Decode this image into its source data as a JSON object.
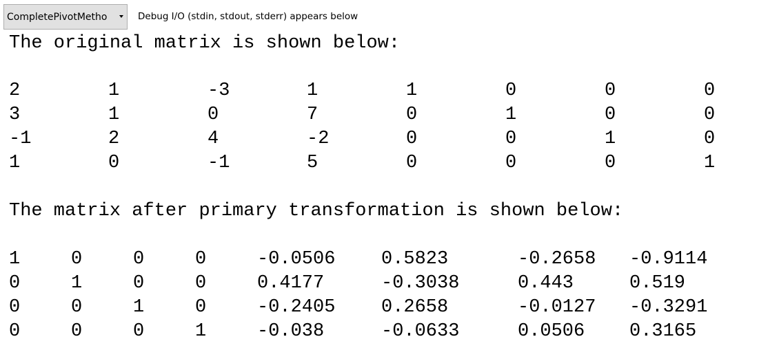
{
  "toolbar": {
    "dropdown_value": "CompletePivotMetho",
    "debug_label": "Debug I/O (stdin, stdout, stderr) appears below"
  },
  "console": {
    "heading1": "The original matrix is shown below:",
    "matrix1": [
      [
        "2",
        "1",
        "-3",
        "1",
        "1",
        "0",
        "0",
        "0"
      ],
      [
        "3",
        "1",
        "0",
        "7",
        "0",
        "1",
        "0",
        "0"
      ],
      [
        "-1",
        "2",
        "4",
        "-2",
        "0",
        "0",
        "1",
        "0"
      ],
      [
        "1",
        "0",
        "-1",
        "5",
        "0",
        "0",
        "0",
        "1"
      ]
    ],
    "heading2": "The matrix after primary transformation is shown below:",
    "matrix2": [
      [
        "1",
        "0",
        "0",
        "0",
        "-0.0506",
        "0.5823",
        "-0.2658",
        "-0.9114"
      ],
      [
        "0",
        "1",
        "0",
        "0",
        "0.4177",
        "-0.3038",
        "0.443",
        "0.519"
      ],
      [
        "0",
        "0",
        "1",
        "0",
        "-0.2405",
        "0.2658",
        "-0.0127",
        "-0.3291"
      ],
      [
        "0",
        "0",
        "0",
        "1",
        "-0.038",
        "-0.0633",
        "0.0506",
        "0.3165"
      ]
    ]
  }
}
